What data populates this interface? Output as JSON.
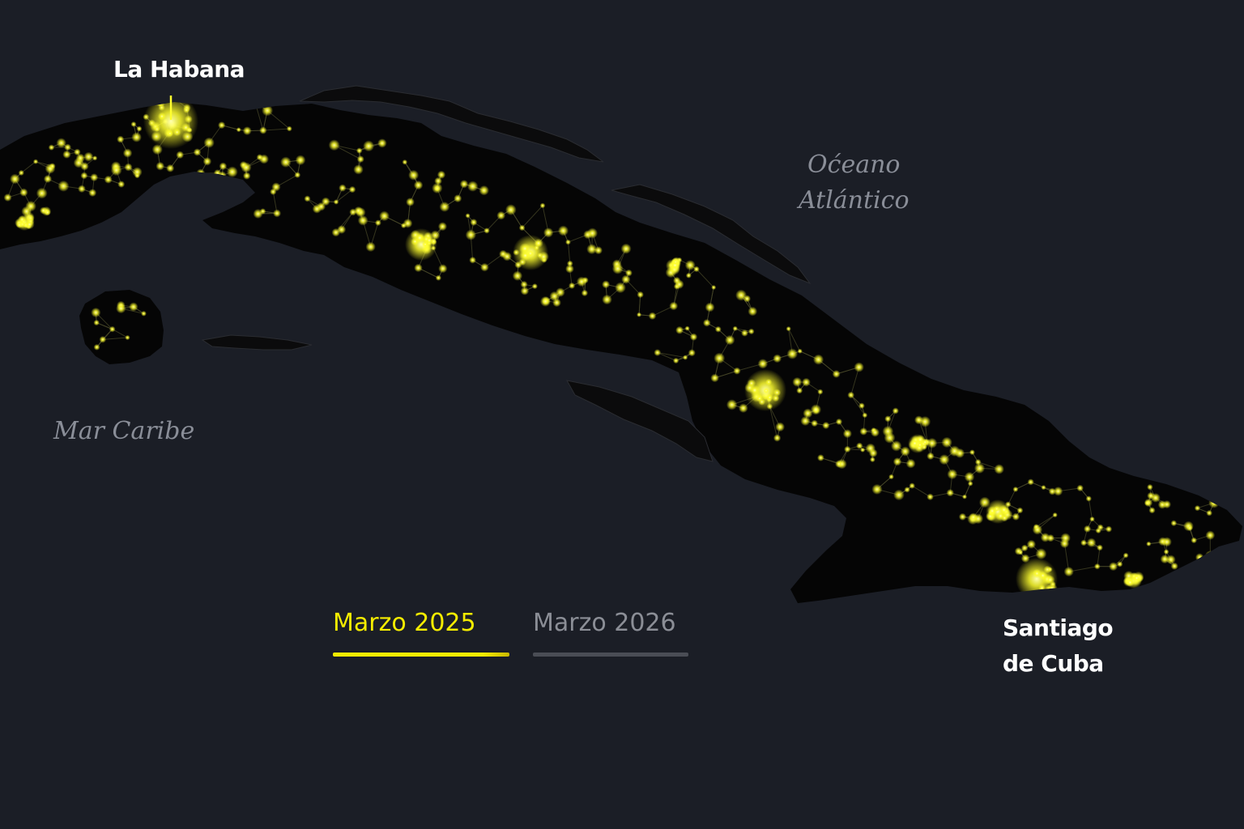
{
  "labels": {
    "havana": "La Habana",
    "santiago_line1": "Santiago",
    "santiago_line2": "de Cuba",
    "ocean_line1": "Oćeano",
    "ocean_line2": "Atlántico",
    "caribbean": "Mar Caribe"
  },
  "toggle": {
    "option_1": "Marzo 2025",
    "option_2": "Marzo 2026",
    "selected": "Marzo 2025"
  },
  "colors": {
    "background": "#1b1e26",
    "land": "#050505",
    "light": "#ffff2e",
    "active_tab": "#f5ec00",
    "inactive_tab": "#8b8e96"
  }
}
